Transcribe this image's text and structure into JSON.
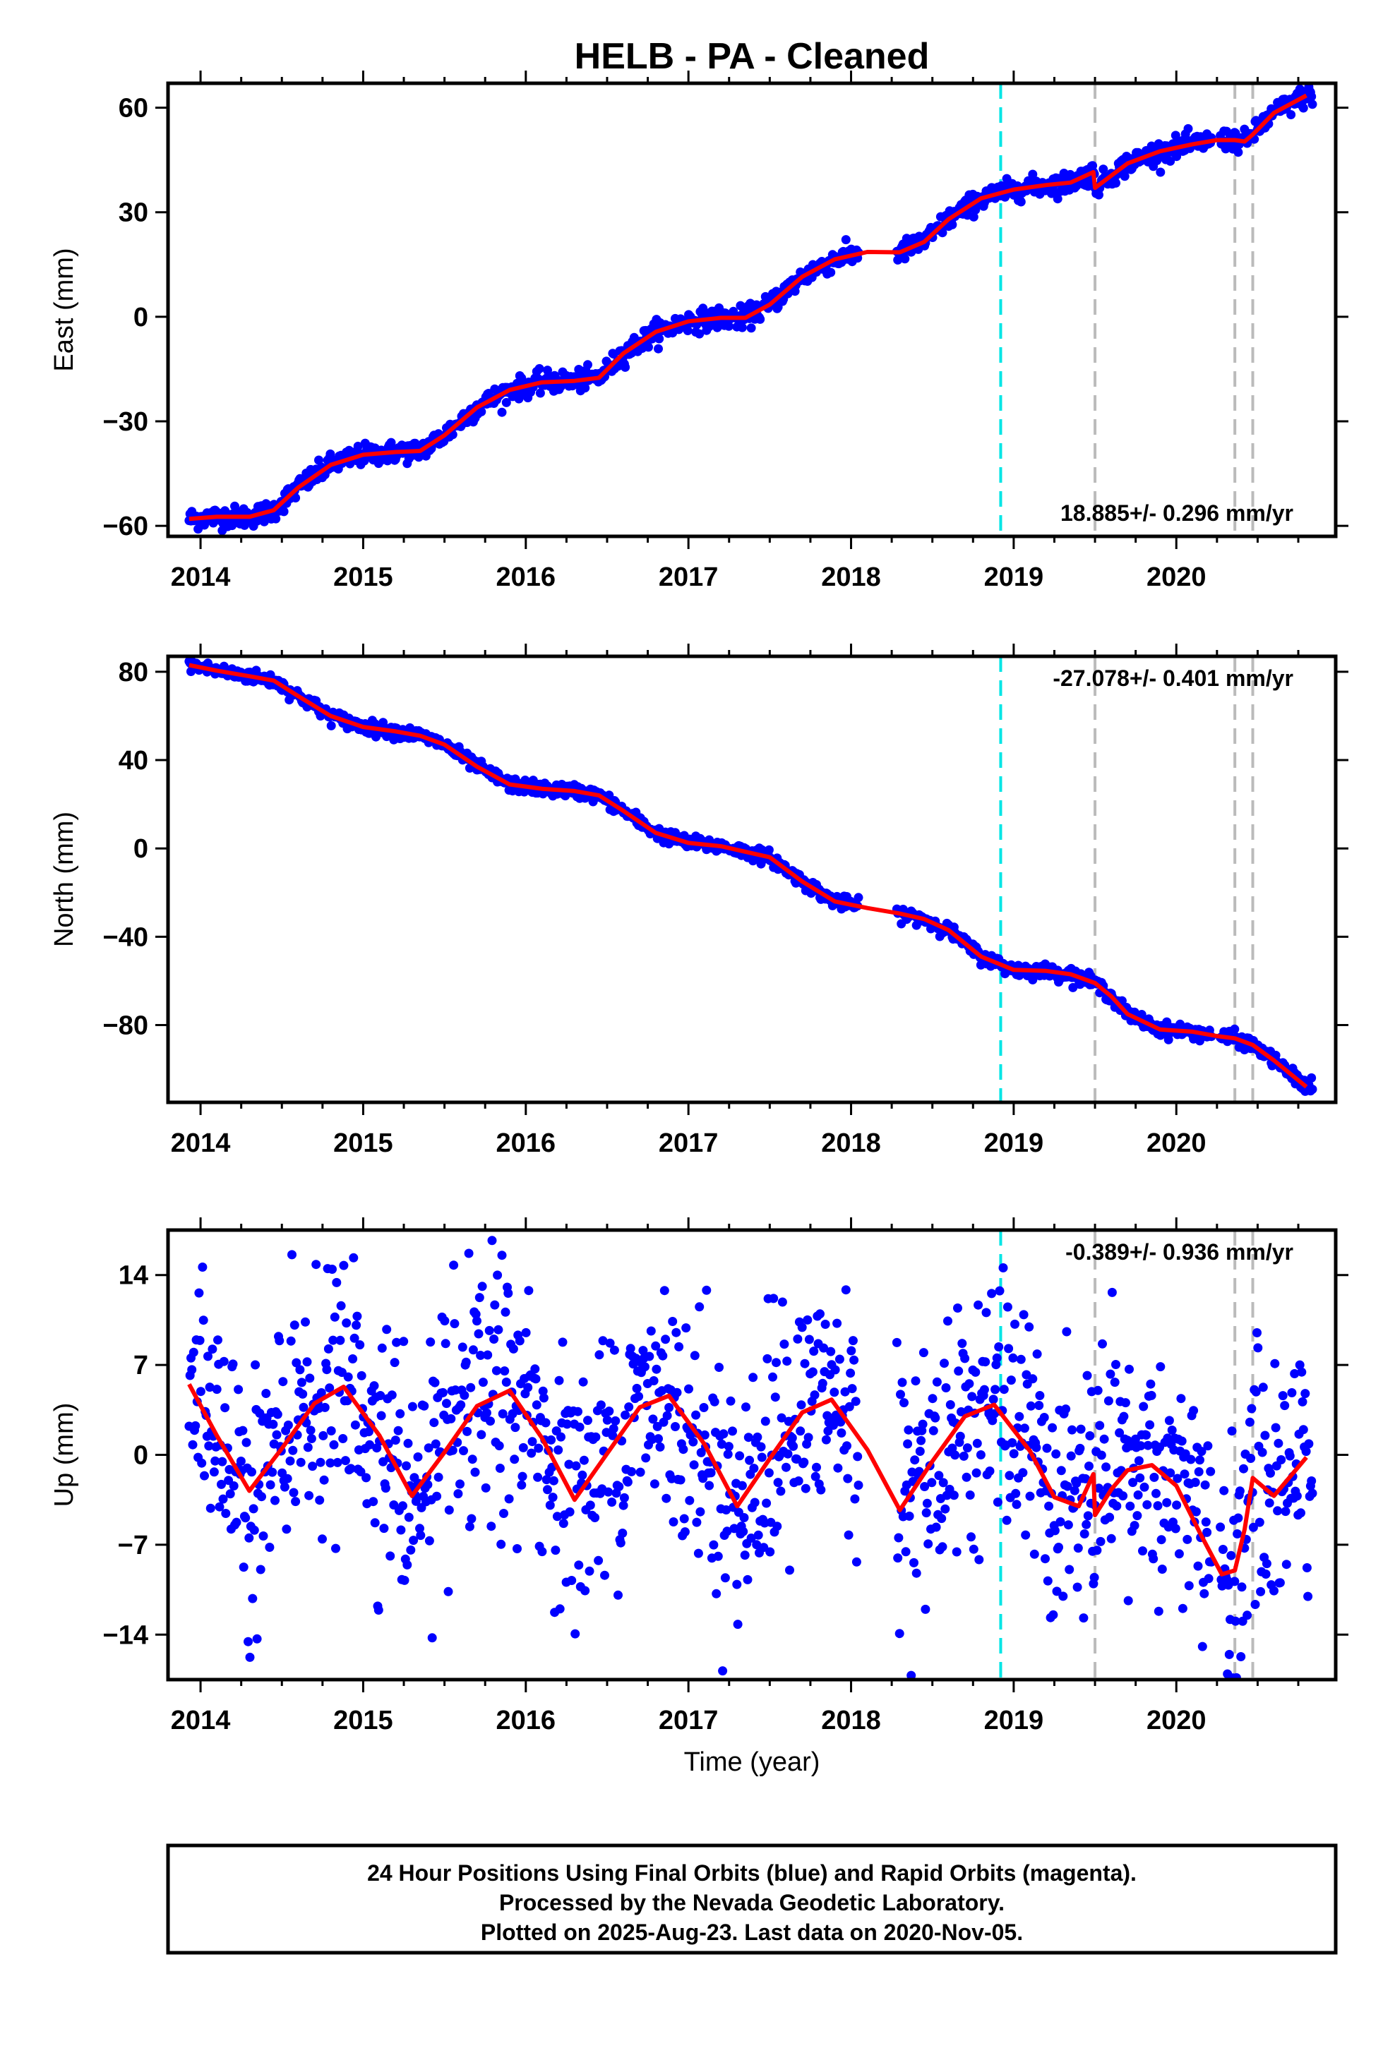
{
  "title": "HELB  - PA - Cleaned",
  "x_axis_label": "Time (year)",
  "footer": [
    "24 Hour Positions Using Final Orbits (blue) and Rapid Orbits (magenta).",
    "Processed by the Nevada Geodetic Laboratory.",
    "Plotted on 2025-Aug-23. Last data on 2020-Nov-05."
  ],
  "colors": {
    "points": "#0000ff",
    "fit": "#ff0000",
    "cyan_line": "#00e5e5",
    "gray_line": "#bbbbbb",
    "frame": "#000000"
  },
  "chart_data": [
    {
      "type": "scatter",
      "ylabel": "East (mm)",
      "xlim": [
        2013.8,
        2020.98
      ],
      "ylim": [
        -63,
        67
      ],
      "xticks": [
        2014,
        2015,
        2016,
        2017,
        2018,
        2019,
        2020
      ],
      "yticks": [
        -60,
        -30,
        0,
        30,
        60
      ],
      "rate": "18.885+/- 0.296 mm/yr",
      "rate_position": "bottom-right",
      "cyan_lines": [
        2018.92
      ],
      "gray_lines": [
        2019.5,
        2020.36,
        2020.47
      ],
      "series": [
        {
          "name": "daily positions",
          "style": "points"
        },
        {
          "name": "model",
          "style": "line",
          "x": [
            2013.93,
            2014.1,
            2014.3,
            2014.45,
            2014.6,
            2014.8,
            2015.0,
            2015.2,
            2015.35,
            2015.5,
            2015.7,
            2015.9,
            2016.1,
            2016.3,
            2016.45,
            2016.6,
            2016.8,
            2017.0,
            2017.2,
            2017.35,
            2017.5,
            2017.7,
            2017.9,
            2018.1,
            2018.3,
            2018.45,
            2018.6,
            2018.8,
            2019.0,
            2019.2,
            2019.35,
            2019.49,
            2019.5,
            2019.6,
            2019.7,
            2019.9,
            2020.1,
            2020.25,
            2020.36,
            2020.42,
            2020.47,
            2020.6,
            2020.8
          ]
        },
        {
          "name": "model-y",
          "y": [
            -58,
            -57.4,
            -57.4,
            -55.5,
            -49,
            -42.5,
            -39.6,
            -38.8,
            -38.5,
            -34,
            -26,
            -21,
            -18.8,
            -18.4,
            -17.5,
            -10.5,
            -4.3,
            -1.3,
            -0.3,
            -0.3,
            3.5,
            11.5,
            16.5,
            18.6,
            18.5,
            21.5,
            28,
            34,
            36.5,
            37.8,
            38.5,
            41.5,
            37,
            40.5,
            44,
            47.5,
            49.5,
            50.7,
            50.7,
            50.3,
            52.3,
            58.5,
            63.5
          ]
        }
      ],
      "scatter_band": 1.5
    },
    {
      "type": "scatter",
      "ylabel": "North (mm)",
      "xlim": [
        2013.8,
        2020.98
      ],
      "ylim": [
        -115,
        87
      ],
      "xticks": [
        2014,
        2015,
        2016,
        2017,
        2018,
        2019,
        2020
      ],
      "yticks": [
        -80,
        -40,
        0,
        40,
        80
      ],
      "rate": "-27.078+/- 0.401 mm/yr",
      "rate_position": "top-right",
      "cyan_lines": [
        2018.92
      ],
      "gray_lines": [
        2019.5,
        2020.36,
        2020.47
      ],
      "series": [
        {
          "name": "daily positions",
          "style": "points"
        },
        {
          "name": "model",
          "style": "line",
          "x": [
            2013.93,
            2014.1,
            2014.3,
            2014.45,
            2014.6,
            2014.8,
            2015.0,
            2015.2,
            2015.35,
            2015.5,
            2015.7,
            2015.9,
            2016.1,
            2016.3,
            2016.45,
            2016.6,
            2016.8,
            2017.0,
            2017.2,
            2017.35,
            2017.5,
            2017.7,
            2017.9,
            2018.1,
            2018.3,
            2018.45,
            2018.6,
            2018.8,
            2019.0,
            2019.2,
            2019.35,
            2019.5,
            2019.6,
            2019.7,
            2019.9,
            2020.1,
            2020.25,
            2020.36,
            2020.47,
            2020.6,
            2020.8
          ]
        },
        {
          "name": "model-y",
          "y": [
            83,
            80.5,
            78,
            76,
            69,
            60,
            55,
            53,
            51,
            47,
            37,
            29,
            27,
            26,
            24,
            17,
            7,
            2.5,
            1,
            -1.5,
            -4,
            -15,
            -24,
            -27,
            -29.5,
            -32,
            -37,
            -49,
            -55,
            -55.5,
            -57,
            -61,
            -67,
            -75,
            -82,
            -83,
            -85,
            -86,
            -89,
            -96,
            -108
          ]
        }
      ],
      "scatter_band": 1.5
    },
    {
      "type": "scatter",
      "ylabel": "Up (mm)",
      "xlim": [
        2013.8,
        2020.98
      ],
      "ylim": [
        -17.5,
        17.5
      ],
      "xticks": [
        2014,
        2015,
        2016,
        2017,
        2018,
        2019,
        2020
      ],
      "yticks": [
        -14,
        -7,
        0,
        7,
        14
      ],
      "rate": "-0.389+/- 0.936 mm/yr",
      "rate_position": "top-right",
      "cyan_lines": [
        2018.92
      ],
      "gray_lines": [
        2019.5,
        2020.36,
        2020.47
      ],
      "series": [
        {
          "name": "daily positions",
          "style": "points"
        },
        {
          "name": "model",
          "style": "line",
          "x": [
            2013.93,
            2014.1,
            2014.3,
            2014.5,
            2014.7,
            2014.88,
            2015.1,
            2015.3,
            2015.5,
            2015.7,
            2015.9,
            2016.1,
            2016.3,
            2016.5,
            2016.7,
            2016.88,
            2017.1,
            2017.3,
            2017.5,
            2017.7,
            2017.88,
            2018.1,
            2018.3,
            2018.5,
            2018.7,
            2018.88,
            2019.1,
            2019.25,
            2019.4,
            2019.49,
            2019.5,
            2019.6,
            2019.7,
            2019.85,
            2020.0,
            2020.15,
            2020.28,
            2020.36,
            2020.42,
            2020.47,
            2020.6,
            2020.8
          ]
        },
        {
          "name": "model-y",
          "y": [
            5.5,
            1.5,
            -2.8,
            0.5,
            4.0,
            5.3,
            1.5,
            -3.2,
            0.2,
            3.8,
            5.0,
            1.3,
            -3.5,
            0.1,
            3.7,
            4.6,
            0.8,
            -4.0,
            -0.3,
            3.3,
            4.3,
            0.4,
            -4.3,
            -0.5,
            3.0,
            3.9,
            0.3,
            -3.3,
            -4.0,
            -1.5,
            -4.7,
            -2.7,
            -1.2,
            -0.8,
            -2.4,
            -6.2,
            -9.3,
            -9.0,
            -5.8,
            -1.8,
            -3.2,
            -0.2
          ]
        }
      ],
      "scatter_band": 4.8
    }
  ]
}
